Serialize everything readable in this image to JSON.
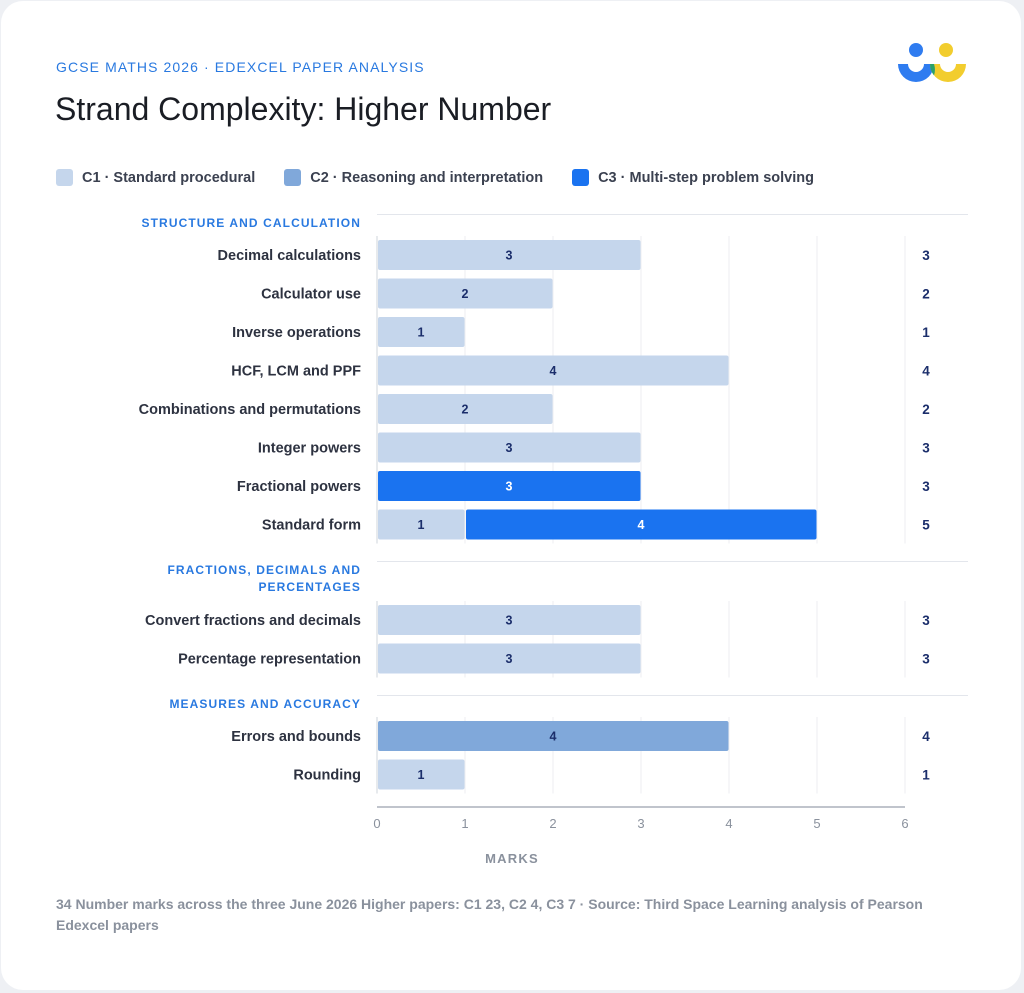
{
  "header": {
    "kicker": "GCSE MATHS 2026 · EDEXCEL PAPER ANALYSIS",
    "title": "Strand Complexity: Higher Number"
  },
  "legend": [
    {
      "label": "C1 · Standard procedural",
      "color": "#c5d6ec"
    },
    {
      "label": "C2 · Reasoning and interpretation",
      "color": "#80a8da"
    },
    {
      "label": "C3 · Multi-step problem solving",
      "color": "#1a73f0"
    }
  ],
  "chart_data": {
    "type": "bar",
    "orientation": "horizontal",
    "stacked": true,
    "xlabel": "MARKS",
    "xlim": [
      0,
      6
    ],
    "xticks": [
      0,
      1,
      2,
      3,
      4,
      5,
      6
    ],
    "grid": true,
    "series_colors": {
      "C1": "#c5d6ec",
      "C2": "#80a8da",
      "C3": "#1a73f0"
    },
    "groups": [
      {
        "title": "STRUCTURE AND CALCULATION",
        "rows": [
          {
            "label": "Decimal calculations",
            "C1": 3,
            "C2": 0,
            "C3": 0,
            "total": 3
          },
          {
            "label": "Calculator use",
            "C1": 2,
            "C2": 0,
            "C3": 0,
            "total": 2
          },
          {
            "label": "Inverse operations",
            "C1": 1,
            "C2": 0,
            "C3": 0,
            "total": 1
          },
          {
            "label": "HCF, LCM and PPF",
            "C1": 4,
            "C2": 0,
            "C3": 0,
            "total": 4
          },
          {
            "label": "Combinations and permutations",
            "C1": 2,
            "C2": 0,
            "C3": 0,
            "total": 2
          },
          {
            "label": "Integer powers",
            "C1": 3,
            "C2": 0,
            "C3": 0,
            "total": 3
          },
          {
            "label": "Fractional powers",
            "C1": 0,
            "C2": 0,
            "C3": 3,
            "total": 3
          },
          {
            "label": "Standard form",
            "C1": 1,
            "C2": 0,
            "C3": 4,
            "total": 5
          }
        ]
      },
      {
        "title": "FRACTIONS, DECIMALS AND PERCENTAGES",
        "title_lines": [
          "FRACTIONS, DECIMALS AND",
          "PERCENTAGES"
        ],
        "rows": [
          {
            "label": "Convert fractions and decimals",
            "C1": 3,
            "C2": 0,
            "C3": 0,
            "total": 3
          },
          {
            "label": "Percentage representation",
            "C1": 3,
            "C2": 0,
            "C3": 0,
            "total": 3
          }
        ]
      },
      {
        "title": "MEASURES AND ACCURACY",
        "rows": [
          {
            "label": "Errors and bounds",
            "C1": 0,
            "C2": 4,
            "C3": 0,
            "total": 4
          },
          {
            "label": "Rounding",
            "C1": 1,
            "C2": 0,
            "C3": 0,
            "total": 1
          }
        ]
      }
    ]
  },
  "footnote": "34 Number marks across the three June 2026 Higher papers: C1 23, C2 4, C3 7 · Source: Third Space Learning analysis of Pearson Edexcel papers"
}
